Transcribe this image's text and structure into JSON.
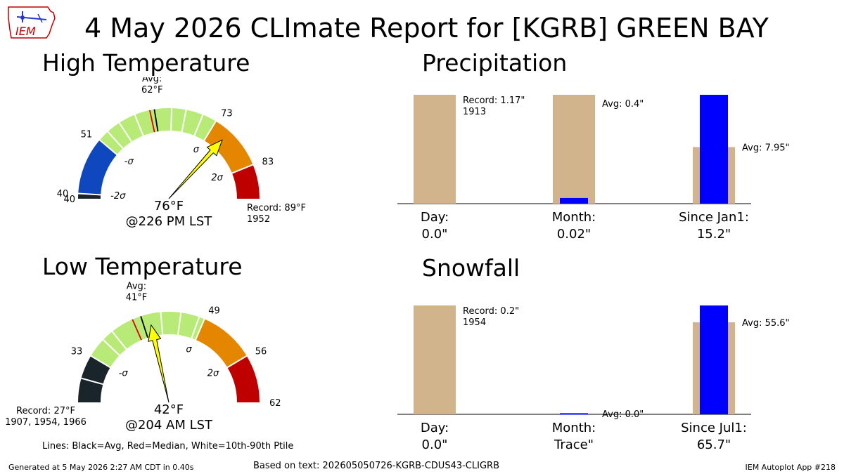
{
  "title": "4 May 2026 CLImate Report for [KGRB] GREEN BAY",
  "logo_text": "IEM",
  "footer": {
    "generated": "Generated at 5 May 2026 2:27 AM CDT in 0.40s",
    "based_on": "Based on text: 202605050726-KGRB-CDUS43-CLIGRB",
    "app": "IEM Autoplot App #218",
    "lines_legend": "Lines: Black=Avg, Red=Median, White=10th-90th Ptile"
  },
  "colors": {
    "gauge_below_2sigma": "#1a242b",
    "gauge_minus_sigma": "#0f47bf",
    "gauge_normal": "#b8ea78",
    "gauge_plus_sigma": "#e58600",
    "gauge_plus_2sigma": "#bf0000",
    "bar_record_avg": "#d2b48c",
    "bar_observed": "#0000ff",
    "needle": "#ffff00"
  },
  "chart_data": [
    {
      "id": "high",
      "type": "gauge",
      "title": "High Temperature",
      "range": [
        40,
        89
      ],
      "min_label": "40",
      "avg": 62,
      "avg_label": "Avg:\n62°F",
      "median": 61.2,
      "percentile_lines": [
        53,
        55.5,
        58.5,
        65,
        67.5,
        70.5
      ],
      "bands": [
        {
          "from": 40,
          "to": 40.9,
          "color": "#1a242b",
          "label": "40"
        },
        {
          "from": 40.9,
          "to": 51,
          "color": "#0f47bf",
          "label": "51"
        },
        {
          "from": 51,
          "to": 73,
          "color": "#b8ea78",
          "label": "73"
        },
        {
          "from": 73,
          "to": 83,
          "color": "#e58600",
          "label": "83"
        },
        {
          "from": 83,
          "to": 89,
          "color": "#bf0000",
          "label": ""
        }
      ],
      "sigma_labels": [
        {
          "text": "-2σ",
          "value": 40.9
        },
        {
          "text": "-σ",
          "value": 51
        },
        {
          "text": "σ",
          "value": 73
        },
        {
          "text": "2σ",
          "value": 83
        }
      ],
      "observed": 76,
      "observed_label": "76°F",
      "time_label": "@226 PM LST",
      "record_label": "Record: 89°F\n1952",
      "record_side": "right"
    },
    {
      "id": "low",
      "type": "gauge",
      "title": "Low Temperature",
      "range": [
        27,
        62
      ],
      "min_label": "",
      "avg": 41,
      "avg_label": "Avg:\n41°F",
      "median": 39.9,
      "percentile_lines": [
        30,
        35.5,
        37,
        43.5,
        46,
        48.3
      ],
      "bands": [
        {
          "from": 27,
          "to": 33,
          "color": "#1a242b",
          "label": "33"
        },
        {
          "from": 33,
          "to": 49,
          "color": "#b8ea78",
          "label": "49"
        },
        {
          "from": 49,
          "to": 56,
          "color": "#e58600",
          "label": "56"
        },
        {
          "from": 56,
          "to": 62,
          "color": "#bf0000",
          "label": "62"
        }
      ],
      "sigma_labels": [
        {
          "text": "-σ",
          "value": 33
        },
        {
          "text": "σ",
          "value": 49
        },
        {
          "text": "2σ",
          "value": 56
        }
      ],
      "observed": 42,
      "observed_label": "42°F",
      "time_label": "@204 AM LST",
      "record_label": "Record: 27°F\n1907, 1954, 1966",
      "record_side": "left"
    },
    {
      "id": "precip",
      "type": "bar",
      "title": "Precipitation",
      "categories": [
        "Day:\n0.0\"",
        "Month:\n0.02\"",
        "Since Jan1:\n15.2\""
      ],
      "series": [
        {
          "name": "Record/Average",
          "values": [
            1,
            1,
            0.52
          ]
        },
        {
          "name": "Observed",
          "values": [
            0,
            0.052,
            1
          ]
        }
      ],
      "annotations": [
        "Record: 1.17\"\n1913",
        "Avg: 0.4\"",
        "Avg: 7.95\""
      ],
      "ylim": [
        0,
        1
      ]
    },
    {
      "id": "snow",
      "type": "bar",
      "title": "Snowfall",
      "categories": [
        "Day:\n0.0\"",
        "Month:\nTrace\"",
        "Since Jul1:\n65.7\""
      ],
      "series": [
        {
          "name": "Record/Average",
          "values": [
            1,
            0,
            0.846
          ]
        },
        {
          "name": "Observed",
          "values": [
            0,
            0.01,
            1
          ]
        }
      ],
      "annotations": [
        "Record: 0.2\"\n1954",
        "Avg: 0.0\"",
        "Avg: 55.6\""
      ],
      "ylim": [
        0,
        1
      ]
    }
  ]
}
